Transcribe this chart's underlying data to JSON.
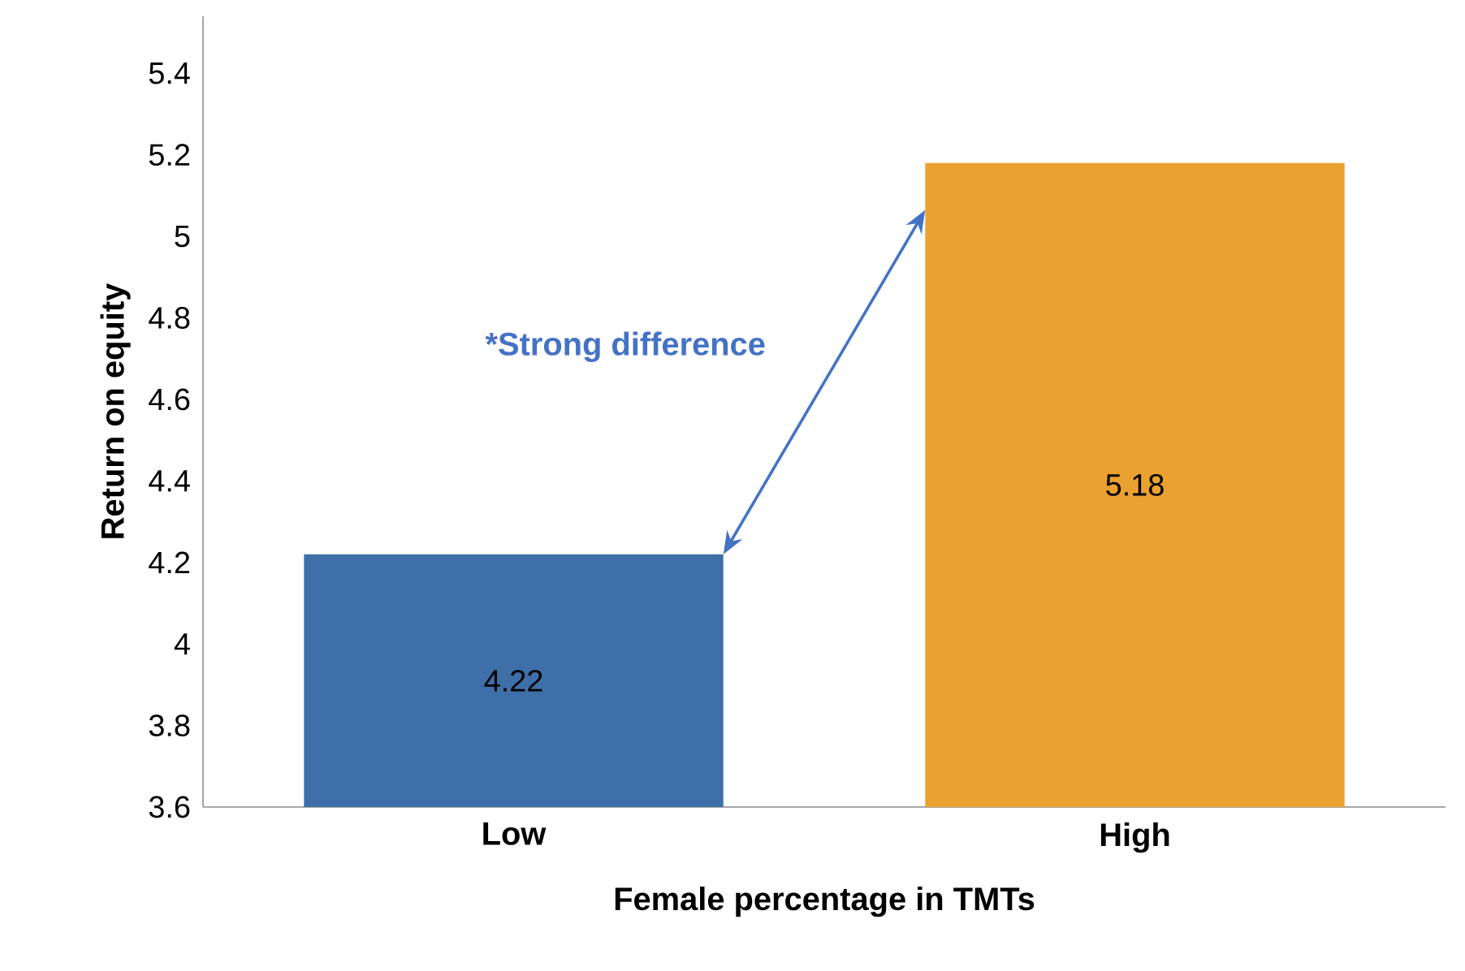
{
  "chart_data": {
    "type": "bar",
    "xlabel": "Female percentage in TMTs",
    "ylabel": "Return on equity",
    "categories": [
      "Low",
      "High"
    ],
    "values": [
      4.22,
      5.18
    ],
    "colors": [
      "#3f6fa8",
      "#eba12f"
    ],
    "ylim": [
      3.6,
      5.54
    ],
    "yticks": [
      3.6,
      3.8,
      4,
      4.2,
      4.4,
      4.6,
      4.8,
      5,
      5.2,
      5.4
    ],
    "data_labels": true,
    "annotations": [
      "*Strong difference"
    ],
    "grid": false
  }
}
